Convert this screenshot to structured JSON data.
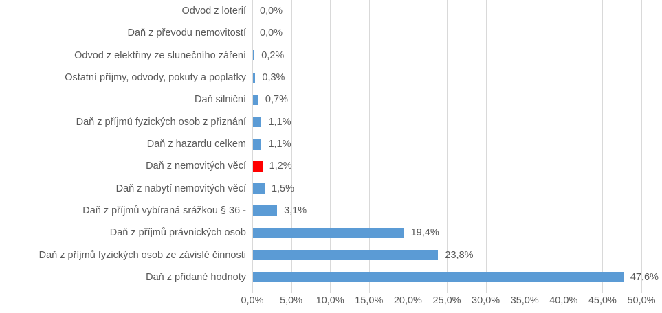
{
  "chart_data": {
    "type": "bar",
    "orientation": "horizontal",
    "title": "",
    "xlabel": "",
    "ylabel": "",
    "categories": [
      "Odvod z loterií",
      "Daň z převodu nemovitostí",
      "Odvod z elektřiny ze slunečního záření",
      "Ostatní příjmy, odvody, pokuty a poplatky",
      "Daň silniční",
      "Daň z příjmů fyzických osob z přiznání",
      "Daň z hazardu celkem",
      "Daň z nemovitých věcí",
      "Daň z nabytí nemovitých věcí",
      "Daň z příjmů vybíraná srážkou § 36 -",
      "Daň z příjmů právnických osob",
      "Daň z příjmů fyzických osob ze závislé činnosti",
      "Daň z přidané hodnoty"
    ],
    "values": [
      0.0,
      0.0,
      0.2,
      0.3,
      0.7,
      1.1,
      1.1,
      1.2,
      1.5,
      3.1,
      19.4,
      23.8,
      47.6
    ],
    "value_labels": [
      "0,0%",
      "0,0%",
      "0,2%",
      "0,3%",
      "0,7%",
      "1,1%",
      "1,1%",
      "1,2%",
      "1,5%",
      "3,1%",
      "19,4%",
      "23,8%",
      "47,6%"
    ],
    "highlight_index": 7,
    "colors": {
      "bar_default": "#5b9bd5",
      "bar_highlight": "#ff0000",
      "gridline": "#d9d9d9",
      "text": "#595959",
      "background": "#ffffff"
    },
    "xlim": [
      0,
      50
    ],
    "x_tick_values": [
      0,
      5,
      10,
      15,
      20,
      25,
      30,
      35,
      40,
      45,
      50
    ],
    "x_tick_labels": [
      "0,0%",
      "5,0%",
      "10,0%",
      "15,0%",
      "20,0%",
      "25,0%",
      "30,0%",
      "35,0%",
      "40,0%",
      "45,0%",
      "50,0%"
    ],
    "grid": true,
    "legend": false
  }
}
